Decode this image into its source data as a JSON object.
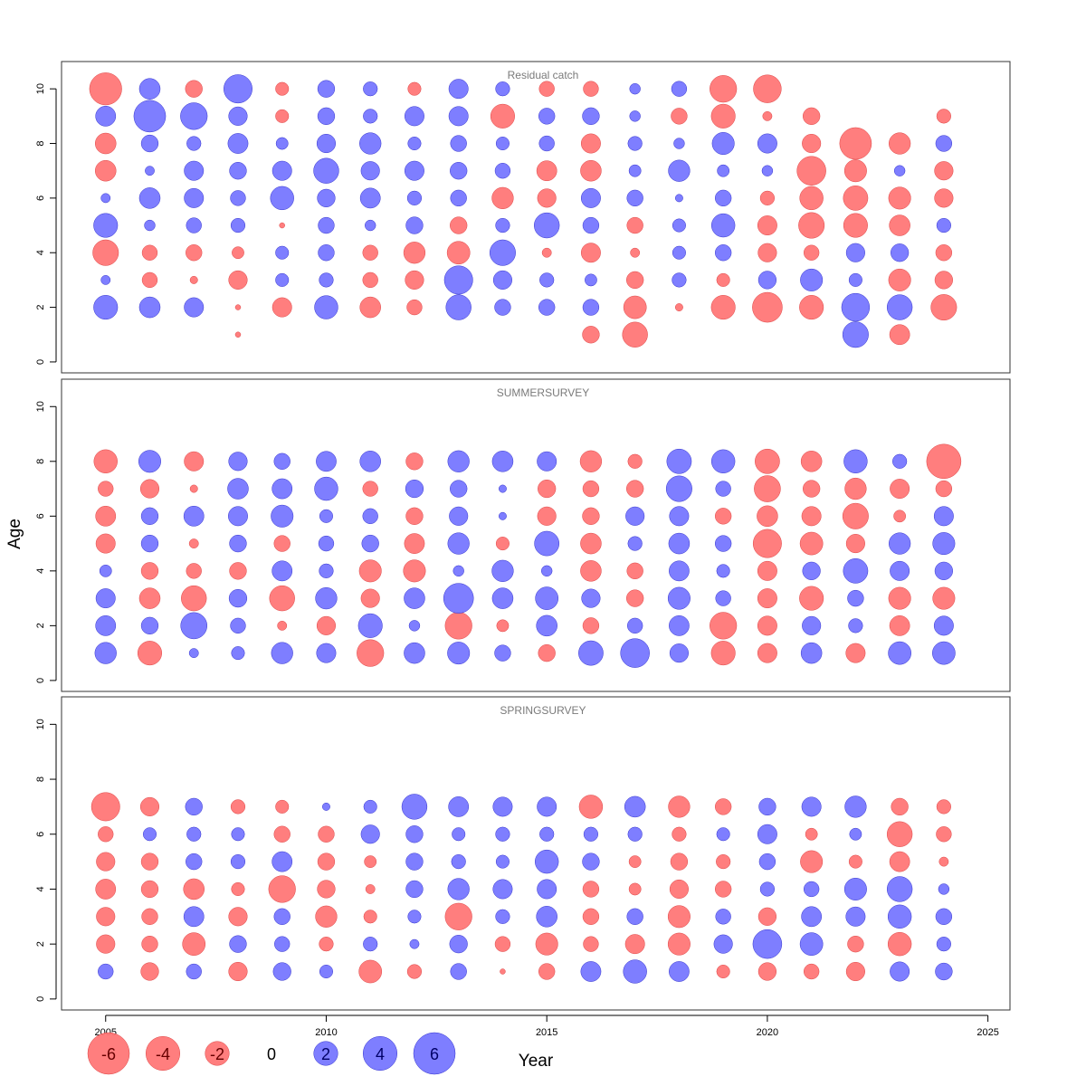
{
  "chart_data": {
    "type": "scatter",
    "xlabel": "Year",
    "ylabel": "Age",
    "xlim": [
      2004,
      2025.5
    ],
    "ylim": [
      -0.4,
      11
    ],
    "x_ticks": [
      2005,
      2010,
      2015,
      2020,
      2025
    ],
    "y_ticks": [
      0,
      2,
      4,
      6,
      8,
      10
    ],
    "colors": {
      "positive": "#7777ff",
      "negative": "#ff7777",
      "positive_edge": "#3333cc",
      "negative_edge": "#dd4444"
    },
    "size_scale_max": 6,
    "legend": [
      {
        "value": -6,
        "label": "-6"
      },
      {
        "value": -4,
        "label": "-4"
      },
      {
        "value": -2,
        "label": "-2"
      },
      {
        "value": 0,
        "label": "0"
      },
      {
        "value": 2,
        "label": "2"
      },
      {
        "value": 4,
        "label": "4"
      },
      {
        "value": 6,
        "label": "6"
      }
    ],
    "panels": [
      {
        "title": "Residual catch",
        "years": [
          2005,
          2006,
          2007,
          2008,
          2009,
          2010,
          2011,
          2012,
          2013,
          2014,
          2015,
          2016,
          2017,
          2018,
          2019,
          2020,
          2021,
          2022,
          2023,
          2024
        ],
        "ages": [
          1,
          2,
          3,
          4,
          5,
          6,
          7,
          8,
          9,
          10
        ],
        "values": [
          [
            null,
            2,
            0.3,
            -2.3,
            2,
            0.3,
            -1.5,
            -1.5,
            1.4,
            -3.6
          ],
          [
            null,
            1.5,
            -0.8,
            -0.8,
            0.4,
            1.5,
            0.3,
            1,
            3.5,
            1.5
          ],
          [
            null,
            1.3,
            -0.2,
            -0.9,
            0.8,
            1.3,
            1.3,
            0.7,
            2.5,
            -1
          ],
          [
            -0.1,
            -0.1,
            -1.2,
            -0.5,
            0.7,
            0.8,
            1,
            1.4,
            1.2,
            2.8
          ],
          [
            null,
            -1.3,
            0.6,
            0.6,
            -0.1,
            1.9,
            1.3,
            0.5,
            -0.6,
            -0.6
          ],
          [
            null,
            1.9,
            0.7,
            0.9,
            0.9,
            1.1,
            2.2,
            1.2,
            1,
            1
          ],
          [
            null,
            -1.5,
            -0.8,
            -0.8,
            0.4,
            1.4,
            1.2,
            1.6,
            0.7,
            0.7
          ],
          [
            null,
            -0.8,
            -1.2,
            -1.6,
            1,
            0.7,
            1.3,
            0.6,
            1.3,
            -0.6
          ],
          [
            null,
            2.2,
            2.8,
            -1.8,
            -1,
            0.9,
            1,
            0.9,
            1.3,
            1.3
          ],
          [
            null,
            0.9,
            1.2,
            2.3,
            0.7,
            -1.6,
            0.8,
            0.6,
            -2,
            0.7
          ],
          [
            null,
            0.9,
            0.7,
            -0.3,
            2.2,
            -1.2,
            -1.4,
            0.8,
            0.9,
            -0.8
          ],
          [
            -1,
            0.9,
            0.5,
            -1.3,
            0.9,
            1.3,
            -1.5,
            -1.3,
            1,
            -0.8
          ],
          [
            -2.2,
            -1.8,
            -1,
            -0.3,
            -0.9,
            0.9,
            0.5,
            0.7,
            0.4,
            0.4
          ],
          [
            null,
            -0.2,
            0.7,
            0.6,
            0.6,
            0.2,
            1.6,
            0.4,
            -0.9,
            0.8
          ],
          [
            null,
            -2,
            -0.6,
            0.9,
            1.9,
            0.9,
            0.5,
            1.7,
            -2,
            -2.5
          ],
          [
            null,
            -3.1,
            1.1,
            -1.2,
            -1.3,
            -0.7,
            0.4,
            1.3,
            -0.3,
            -2.7
          ],
          [
            null,
            -2,
            1.7,
            -0.8,
            -2.3,
            -1.9,
            -2.9,
            -1.2,
            -1,
            null
          ],
          [
            2.3,
            2.7,
            0.6,
            1.2,
            -2,
            -2.1,
            -1.7,
            -3.5,
            null,
            null
          ],
          [
            -1.4,
            2.2,
            -1.7,
            1.1,
            -1.5,
            -1.7,
            0.4,
            -1.6,
            null,
            null
          ],
          [
            null,
            -2.3,
            -1.1,
            -0.9,
            0.7,
            -1.2,
            -1.2,
            0.9,
            -0.7,
            null
          ]
        ]
      },
      {
        "title": "SUMMERSURVEY",
        "years": [
          2005,
          2006,
          2007,
          2008,
          2009,
          2010,
          2011,
          2012,
          2013,
          2014,
          2015,
          2016,
          2017,
          2018,
          2019,
          2020,
          2021,
          2022,
          2023,
          2024
        ],
        "ages": [
          1,
          2,
          3,
          4,
          5,
          6,
          7,
          8
        ],
        "values": [
          [
            1.6,
            1.4,
            1.3,
            0.5,
            -1.3,
            -1.4,
            -0.8,
            -1.9
          ],
          [
            -2,
            1,
            -1.5,
            -1,
            1,
            1,
            -1.2,
            1.7
          ],
          [
            0.3,
            2.4,
            -2.2,
            -0.8,
            -0.3,
            1.4,
            -0.2,
            -1.3
          ],
          [
            0.6,
            0.8,
            1.1,
            -1,
            1,
            1.3,
            1.5,
            1.2
          ],
          [
            1.6,
            -0.3,
            -2.2,
            1.4,
            -0.9,
            1.7,
            1.4,
            0.9
          ],
          [
            1.3,
            -1.2,
            1.6,
            0.7,
            0.8,
            0.6,
            1.9,
            1.4
          ],
          [
            -2.5,
            2,
            -1.2,
            -1.7,
            1,
            0.8,
            -0.8,
            1.5
          ],
          [
            1.5,
            0.4,
            1.5,
            -1.7,
            -1.4,
            -1,
            1.1,
            -1
          ],
          [
            1.7,
            -2.5,
            3.1,
            0.4,
            1.6,
            1.2,
            1,
            1.6
          ],
          [
            0.9,
            -0.5,
            1.5,
            1.6,
            -0.6,
            0.2,
            0.2,
            1.5
          ],
          [
            -1,
            1.5,
            1.8,
            0.4,
            2.1,
            -1.2,
            -1.1,
            1.3
          ],
          [
            2.1,
            -0.9,
            1.2,
            -1.5,
            -1.5,
            -1,
            -0.9,
            -1.6
          ],
          [
            2.9,
            0.8,
            -1,
            -0.9,
            0.7,
            1.2,
            -1,
            -0.7
          ],
          [
            1.2,
            1.4,
            1.7,
            1.4,
            1.5,
            1.3,
            2.3,
            2.1
          ],
          [
            -2,
            -2.5,
            0.8,
            0.6,
            0.9,
            -0.9,
            0.8,
            1.9
          ],
          [
            -1.3,
            -1.3,
            -1.3,
            -1.3,
            -2.8,
            -1.5,
            -2.4,
            -2.1
          ],
          [
            1.5,
            1.2,
            -2,
            1.1,
            -1.8,
            -1.3,
            -1,
            -1.5
          ],
          [
            -1.3,
            0.7,
            0.9,
            2.1,
            -1.2,
            -2.3,
            -1.6,
            1.9
          ],
          [
            1.8,
            -1.4,
            -1.7,
            1.3,
            1.6,
            -0.5,
            -1.3,
            0.7
          ],
          [
            1.8,
            1.3,
            -1.7,
            1.1,
            1.7,
            1.3,
            -0.9,
            -4.1
          ]
        ]
      },
      {
        "title": "SPRINGSURVEY",
        "years": [
          2005,
          2006,
          2007,
          2008,
          2009,
          2010,
          2011,
          2012,
          2013,
          2014,
          2015,
          2016,
          2017,
          2018,
          2019,
          2020,
          2021,
          2022,
          2023,
          2024
        ],
        "ages": [
          1,
          2,
          3,
          4,
          5,
          6,
          7
        ],
        "values": [
          [
            0.8,
            -1.2,
            -1.2,
            -1.4,
            -1.2,
            -0.8,
            -2.8
          ],
          [
            -1.1,
            -0.9,
            -0.9,
            -1,
            -1,
            0.6,
            -1.2
          ],
          [
            0.8,
            -1.8,
            1.4,
            -1.5,
            0.9,
            0.7,
            1
          ],
          [
            -1.2,
            1,
            -1.2,
            -0.6,
            0.7,
            0.6,
            -0.7
          ],
          [
            1.1,
            0.8,
            0.9,
            -2.5,
            1.4,
            -0.9,
            -0.6
          ],
          [
            0.6,
            -0.7,
            -1.6,
            -1.1,
            -1,
            -0.9,
            0.2
          ],
          [
            -1.8,
            0.7,
            -0.6,
            -0.3,
            -0.5,
            1.2,
            0.6
          ],
          [
            -0.7,
            0.3,
            0.6,
            1,
            1,
            1,
            2.2
          ],
          [
            0.9,
            1.1,
            -2.5,
            1.6,
            0.7,
            0.6,
            1.4
          ],
          [
            -0.1,
            -0.8,
            0.7,
            1.3,
            0.6,
            0.7,
            1.3
          ],
          [
            -0.9,
            -1.7,
            1.5,
            1.3,
            1.9,
            0.7,
            1.3
          ],
          [
            1.4,
            -0.8,
            -0.9,
            -0.9,
            1,
            0.7,
            -1.9
          ],
          [
            1.9,
            -1.3,
            0.9,
            -0.5,
            -0.5,
            0.7,
            1.5
          ],
          [
            1.4,
            -1.7,
            -1.7,
            -1.2,
            -1,
            -0.7,
            -1.6
          ],
          [
            -0.6,
            1.2,
            0.8,
            -0.9,
            -0.7,
            0.6,
            -0.9
          ],
          [
            -1.1,
            2.9,
            -1.1,
            0.7,
            0.9,
            1.3,
            1
          ],
          [
            -0.8,
            1.8,
            1.4,
            0.8,
            -1.7,
            -0.5,
            1.3
          ],
          [
            -1.2,
            -0.9,
            1.3,
            1.7,
            -0.6,
            0.5,
            1.6
          ],
          [
            1.3,
            -1.9,
            1.9,
            2.2,
            -1.4,
            -2.2,
            -1
          ],
          [
            1,
            0.7,
            0.9,
            0.4,
            -0.3,
            -0.8,
            -0.7
          ]
        ]
      }
    ]
  }
}
